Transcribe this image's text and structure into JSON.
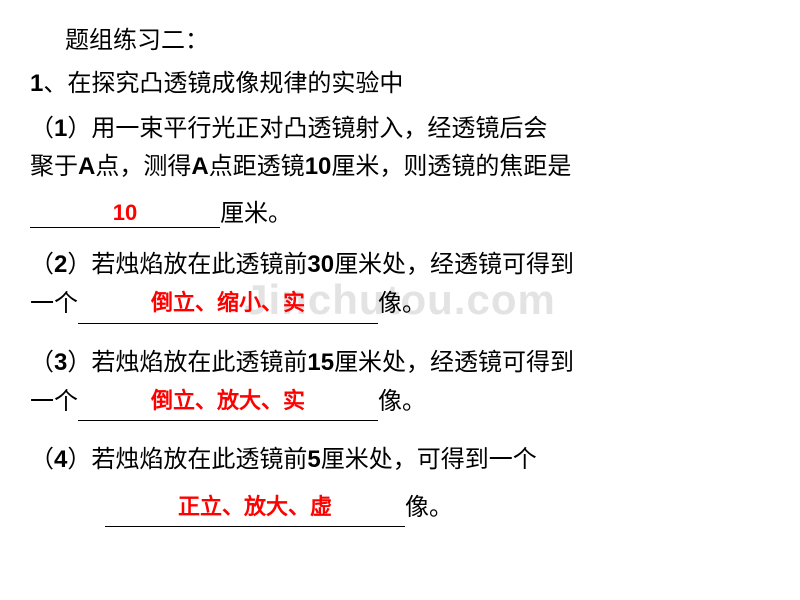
{
  "watermark": "Jinchutou.com",
  "title": "题组练习二：",
  "q1_header_num": "1",
  "q1_header_text": "、在探究凸透镜成像规律的实验中",
  "sub1_num": "1",
  "sub1_text_a": "（",
  "sub1_text_b": "）用一束平行光正对凸透镜射入，经透镜后会",
  "sub1_line2_a": "聚于",
  "sub1_A": "A",
  "sub1_line2_b": "点，测得",
  "sub1_line2_c": "点距透镜",
  "sub1_ten": "10",
  "sub1_line2_d": "厘米，则透镜的焦距是",
  "answer1": "10",
  "sub1_unit": "厘米。",
  "sub2_num": "2",
  "sub2_text_a": "（",
  "sub2_text_b": "）若烛焰放在此透镜前",
  "sub2_dist": "30",
  "sub2_text_c": "厘米处，经透镜可得到",
  "sub2_line2_a": "一个",
  "answer2": "倒立、缩小、实",
  "sub2_suffix": "像。",
  "sub3_num": "3",
  "sub3_text_a": "（",
  "sub3_text_b": "）若烛焰放在此透镜前",
  "sub3_dist": "15",
  "sub3_text_c": "厘米处，经透镜可得到",
  "sub3_line2_a": "一个",
  "answer3": "倒立、放大、实",
  "sub3_suffix": "像。",
  "sub4_num": "4",
  "sub4_text_a": "（",
  "sub4_text_b": "）若烛焰放在此透镜前",
  "sub4_dist": "5",
  "sub4_text_c": "厘米处，可得到一个",
  "answer4": "正立、放大、虚",
  "sub4_suffix": "像。",
  "colors": {
    "text": "#000000",
    "answer": "#ff0000",
    "background": "#ffffff",
    "watermark": "rgba(200,200,200,0.5)"
  },
  "fonts": {
    "main_size": 24,
    "answer_size": 22
  }
}
